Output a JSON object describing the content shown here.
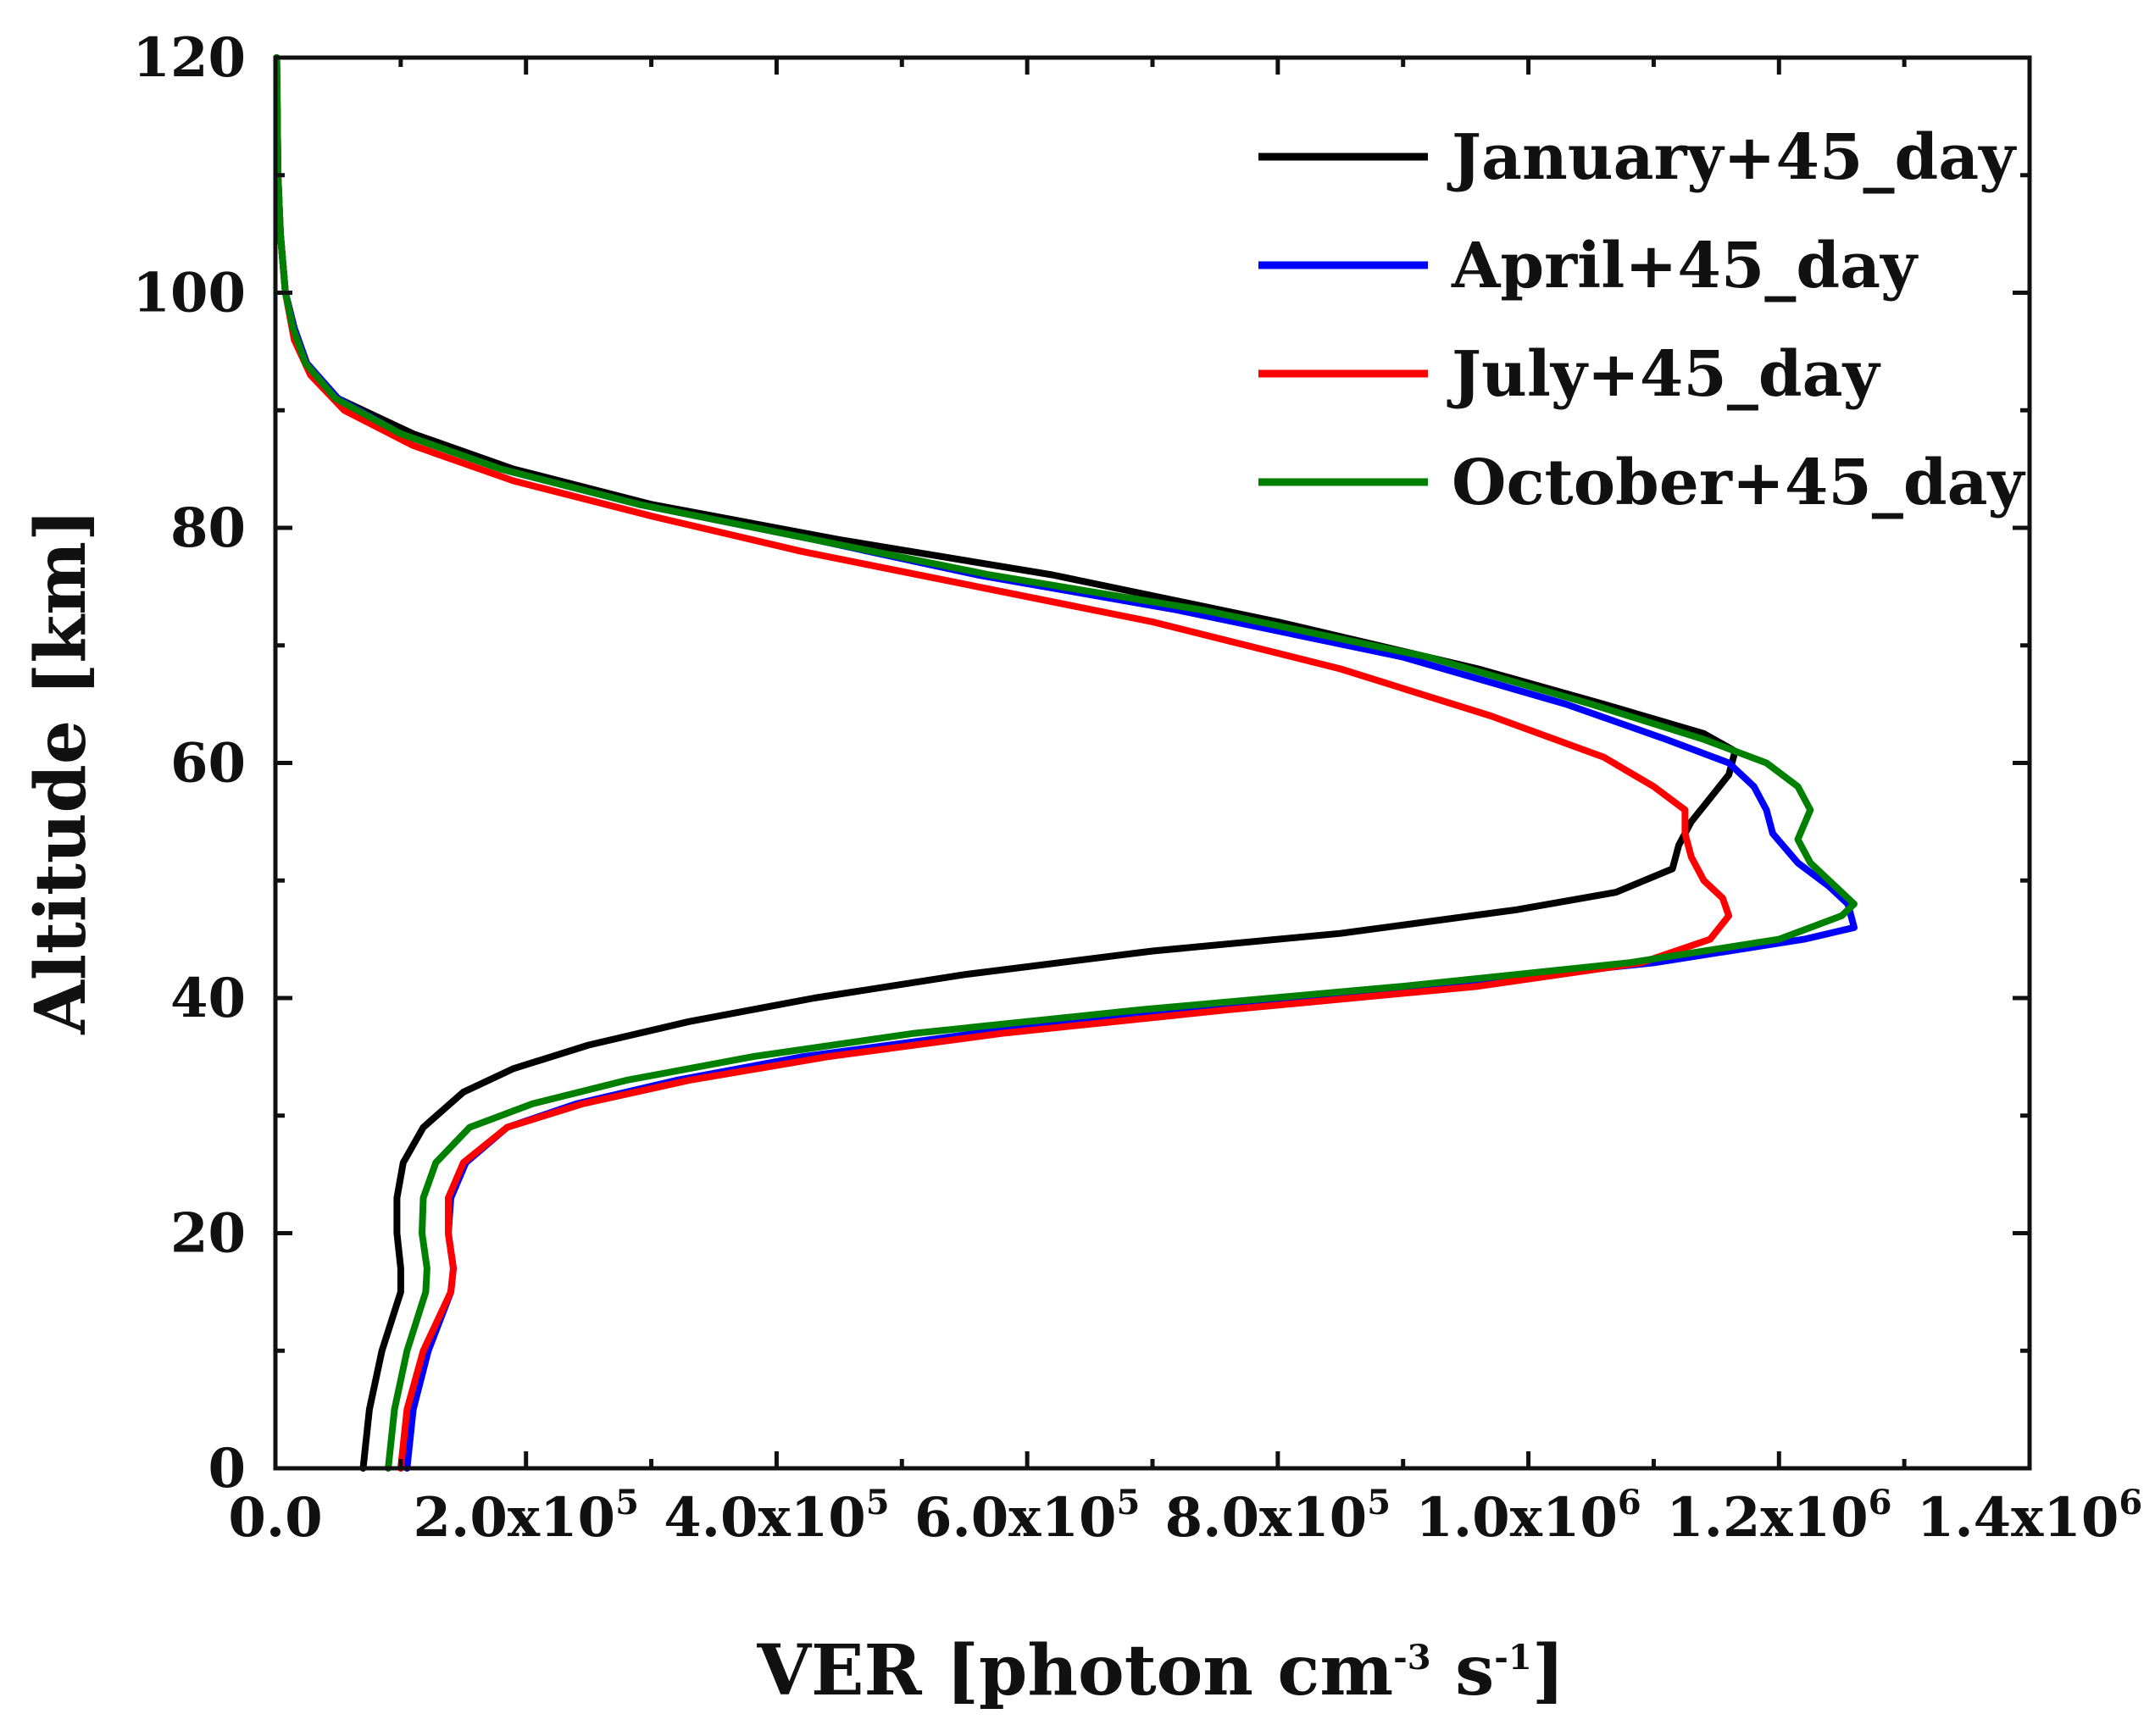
{
  "chart_data": {
    "type": "line",
    "title": "",
    "xlabel": "VER [photon cm-3 s-1]",
    "xlabel_parts": {
      "main": "VER [photon cm",
      "sup1": "-3",
      "mid": " s",
      "sup2": "-1",
      "end": "]"
    },
    "ylabel": "Altitude [km]",
    "xlim": [
      0,
      1400000
    ],
    "ylim": [
      0,
      120
    ],
    "x_ticks": [
      {
        "value": 0,
        "label": "0.0",
        "mantissa": "0.0",
        "exp": ""
      },
      {
        "value": 200000,
        "label": "2.0x10^5",
        "mantissa": "2.0x10",
        "exp": "5"
      },
      {
        "value": 400000,
        "label": "4.0x10^5",
        "mantissa": "4.0x10",
        "exp": "5"
      },
      {
        "value": 600000,
        "label": "6.0x10^5",
        "mantissa": "6.0x10",
        "exp": "5"
      },
      {
        "value": 800000,
        "label": "8.0x10^5",
        "mantissa": "8.0x10",
        "exp": "5"
      },
      {
        "value": 1000000,
        "label": "1.0x10^6",
        "mantissa": "1.0x10",
        "exp": "6"
      },
      {
        "value": 1200000,
        "label": "1.2x10^6",
        "mantissa": "1.2x10",
        "exp": "6"
      },
      {
        "value": 1400000,
        "label": "1.4x10^6",
        "mantissa": "1.4x10",
        "exp": "6"
      }
    ],
    "y_ticks": [
      {
        "value": 0,
        "label": "0"
      },
      {
        "value": 20,
        "label": "20"
      },
      {
        "value": 40,
        "label": "40"
      },
      {
        "value": 60,
        "label": "60"
      },
      {
        "value": 80,
        "label": "80"
      },
      {
        "value": 100,
        "label": "100"
      },
      {
        "value": 120,
        "label": "120"
      }
    ],
    "legend_position": "top-right",
    "grid": false,
    "series": [
      {
        "name": "January+45_day",
        "color": "#000000",
        "points": [
          [
            70000,
            0
          ],
          [
            75000,
            5
          ],
          [
            85000,
            10
          ],
          [
            100000,
            15
          ],
          [
            100000,
            17
          ],
          [
            97000,
            20
          ],
          [
            97000,
            23
          ],
          [
            102000,
            26
          ],
          [
            118000,
            29
          ],
          [
            150000,
            32
          ],
          [
            190000,
            34
          ],
          [
            250000,
            36
          ],
          [
            330000,
            38
          ],
          [
            430000,
            40
          ],
          [
            550000,
            42
          ],
          [
            700000,
            44
          ],
          [
            850000,
            45.5
          ],
          [
            990000,
            47.5
          ],
          [
            1070000,
            49
          ],
          [
            1115000,
            51
          ],
          [
            1120000,
            53
          ],
          [
            1130000,
            55
          ],
          [
            1145000,
            57
          ],
          [
            1160000,
            59
          ],
          [
            1165000,
            61
          ],
          [
            1140000,
            62.5
          ],
          [
            1060000,
            65
          ],
          [
            960000,
            68
          ],
          [
            800000,
            72
          ],
          [
            620000,
            76
          ],
          [
            450000,
            79
          ],
          [
            300000,
            82
          ],
          [
            190000,
            85
          ],
          [
            110000,
            88
          ],
          [
            50000,
            91
          ],
          [
            25000,
            94
          ],
          [
            15000,
            97
          ],
          [
            8000,
            100
          ],
          [
            4000,
            105
          ],
          [
            2000,
            110
          ],
          [
            1000,
            120
          ]
        ]
      },
      {
        "name": "April+45_day",
        "color": "#0000ff",
        "points": [
          [
            105000,
            0
          ],
          [
            110000,
            5
          ],
          [
            122000,
            10
          ],
          [
            140000,
            15
          ],
          [
            142000,
            17
          ],
          [
            138000,
            20
          ],
          [
            140000,
            23
          ],
          [
            152000,
            26
          ],
          [
            185000,
            29
          ],
          [
            240000,
            31
          ],
          [
            320000,
            33
          ],
          [
            420000,
            35
          ],
          [
            560000,
            37
          ],
          [
            730000,
            39
          ],
          [
            920000,
            41
          ],
          [
            1100000,
            43
          ],
          [
            1220000,
            45
          ],
          [
            1260000,
            46
          ],
          [
            1255000,
            48
          ],
          [
            1240000,
            49.5
          ],
          [
            1215000,
            51.5
          ],
          [
            1195000,
            54
          ],
          [
            1190000,
            56
          ],
          [
            1180000,
            58
          ],
          [
            1160000,
            60
          ],
          [
            1110000,
            62
          ],
          [
            1030000,
            65
          ],
          [
            900000,
            69
          ],
          [
            720000,
            73
          ],
          [
            560000,
            76
          ],
          [
            430000,
            79
          ],
          [
            290000,
            82
          ],
          [
            180000,
            85
          ],
          [
            100000,
            88
          ],
          [
            50000,
            91
          ],
          [
            25000,
            94
          ],
          [
            15000,
            97
          ],
          [
            8000,
            100
          ],
          [
            4000,
            105
          ],
          [
            2000,
            110
          ],
          [
            1000,
            120
          ]
        ]
      },
      {
        "name": "July+45_day",
        "color": "#ff0000",
        "points": [
          [
            100000,
            0
          ],
          [
            105000,
            5
          ],
          [
            118000,
            10
          ],
          [
            140000,
            15
          ],
          [
            142000,
            17
          ],
          [
            138000,
            20
          ],
          [
            138000,
            23
          ],
          [
            150000,
            26
          ],
          [
            185000,
            29
          ],
          [
            245000,
            31
          ],
          [
            330000,
            33
          ],
          [
            440000,
            35
          ],
          [
            580000,
            37
          ],
          [
            760000,
            39
          ],
          [
            960000,
            41
          ],
          [
            1090000,
            43
          ],
          [
            1145000,
            45
          ],
          [
            1160000,
            47
          ],
          [
            1155000,
            48.5
          ],
          [
            1140000,
            50
          ],
          [
            1130000,
            52
          ],
          [
            1125000,
            54
          ],
          [
            1125000,
            56
          ],
          [
            1100000,
            58
          ],
          [
            1060000,
            60.5
          ],
          [
            970000,
            64
          ],
          [
            850000,
            68
          ],
          [
            700000,
            72
          ],
          [
            560000,
            75
          ],
          [
            420000,
            78
          ],
          [
            300000,
            81
          ],
          [
            190000,
            84
          ],
          [
            110000,
            87
          ],
          [
            55000,
            90
          ],
          [
            28000,
            93
          ],
          [
            15000,
            96
          ],
          [
            8000,
            100
          ],
          [
            4000,
            105
          ],
          [
            2000,
            110
          ],
          [
            1000,
            120
          ]
        ]
      },
      {
        "name": "October+45_day",
        "color": "#008000",
        "points": [
          [
            90000,
            0
          ],
          [
            95000,
            5
          ],
          [
            105000,
            10
          ],
          [
            120000,
            15
          ],
          [
            121000,
            17
          ],
          [
            117000,
            20
          ],
          [
            118000,
            23
          ],
          [
            128000,
            26
          ],
          [
            155000,
            29
          ],
          [
            205000,
            31
          ],
          [
            280000,
            33
          ],
          [
            380000,
            35
          ],
          [
            510000,
            37
          ],
          [
            690000,
            39
          ],
          [
            900000,
            41
          ],
          [
            1080000,
            43
          ],
          [
            1200000,
            45
          ],
          [
            1250000,
            47
          ],
          [
            1260000,
            48
          ],
          [
            1245000,
            49.5
          ],
          [
            1225000,
            51.5
          ],
          [
            1215000,
            53.5
          ],
          [
            1225000,
            56
          ],
          [
            1215000,
            58
          ],
          [
            1190000,
            60
          ],
          [
            1140000,
            62
          ],
          [
            1050000,
            65
          ],
          [
            920000,
            69
          ],
          [
            740000,
            73
          ],
          [
            570000,
            76
          ],
          [
            430000,
            79
          ],
          [
            290000,
            82
          ],
          [
            180000,
            85
          ],
          [
            100000,
            88
          ],
          [
            48000,
            91
          ],
          [
            24000,
            94
          ],
          [
            14000,
            97
          ],
          [
            8000,
            100
          ],
          [
            4000,
            105
          ],
          [
            2000,
            110
          ],
          [
            1000,
            120
          ]
        ]
      }
    ]
  }
}
